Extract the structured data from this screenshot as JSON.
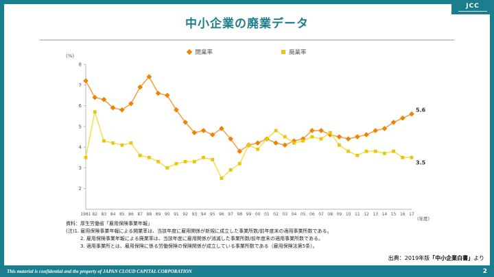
{
  "slide": {
    "title": "中小企業の廃業データ",
    "logo_text": "JCC",
    "footer_text": "This material is confidential and the property of JAPAN CLOUD CAPITAL CORPORATION",
    "page_number": "2",
    "source_prefix": "出典：2019年版",
    "source_bold": "「中小企業白書」",
    "source_suffix": "より"
  },
  "notes": {
    "line1": "資料：厚生労働省「雇用保険事業年報」",
    "line2": "(注)1. 雇用保険事業年報による開業率は、当該年度に雇用関係が新規に成立した事業所数/前年度末の適用事業所数である。",
    "line3": "2. 雇用保険事業年報による廃業率は、当該年度に雇用関係が消滅した事業所数/前年度末の適用事業所数である。",
    "line4": "3. 適用事業所とは、雇用保険に係る労働保険の保険関係が成立している事業所数である（雇用保険法第5条）。"
  },
  "colors": {
    "accent_teal": "#1B7E8F",
    "opening_marker": "#EF8200",
    "opening_line": "#F2A24D",
    "closing_marker": "#E8C511",
    "closing_line": "#F3E14F"
  },
  "chart_data": {
    "type": "line",
    "title": "中小企業の廃業データ",
    "ylabel": "(%)",
    "xlabel": "(年度)",
    "ylim": [
      1,
      8
    ],
    "yticks": [
      2,
      3,
      4,
      5,
      6,
      7,
      8
    ],
    "grid": false,
    "legend_position": "top",
    "categories": [
      "1981",
      "82",
      "83",
      "84",
      "85",
      "86",
      "87",
      "88",
      "89",
      "90",
      "91",
      "92",
      "93",
      "94",
      "95",
      "96",
      "97",
      "98",
      "99",
      "00",
      "01",
      "02",
      "03",
      "04",
      "05",
      "06",
      "07",
      "08",
      "09",
      "10",
      "11",
      "12",
      "13",
      "14",
      "15",
      "16",
      "17"
    ],
    "series": [
      {
        "name": "開業率",
        "marker": "diamond",
        "color": "#EF8200",
        "line_color": "#F2A24D",
        "end_label": "5.6",
        "values": [
          7.2,
          6.4,
          6.3,
          5.9,
          5.8,
          6.1,
          6.9,
          7.4,
          6.6,
          6.5,
          5.8,
          5.2,
          4.7,
          4.8,
          4.6,
          4.9,
          4.4,
          3.8,
          4.1,
          4.2,
          4.4,
          4.2,
          4.1,
          4.3,
          4.4,
          4.8,
          4.8,
          4.6,
          4.5,
          4.4,
          4.5,
          4.6,
          4.8,
          4.9,
          5.2,
          5.4,
          5.6
        ]
      },
      {
        "name": "廃業率",
        "marker": "square",
        "color": "#E8C511",
        "line_color": "#F3E14F",
        "end_label": "3.5",
        "values": [
          3.5,
          5.7,
          4.3,
          4.2,
          4.1,
          4.2,
          3.6,
          3.5,
          3.3,
          3.0,
          3.2,
          3.3,
          3.3,
          3.5,
          3.4,
          2.5,
          2.9,
          3.2,
          4.1,
          3.9,
          4.4,
          4.8,
          4.5,
          4.2,
          4.3,
          4.5,
          4.4,
          4.7,
          4.1,
          3.8,
          3.6,
          3.8,
          3.8,
          3.7,
          3.8,
          3.5,
          3.5
        ]
      }
    ]
  }
}
